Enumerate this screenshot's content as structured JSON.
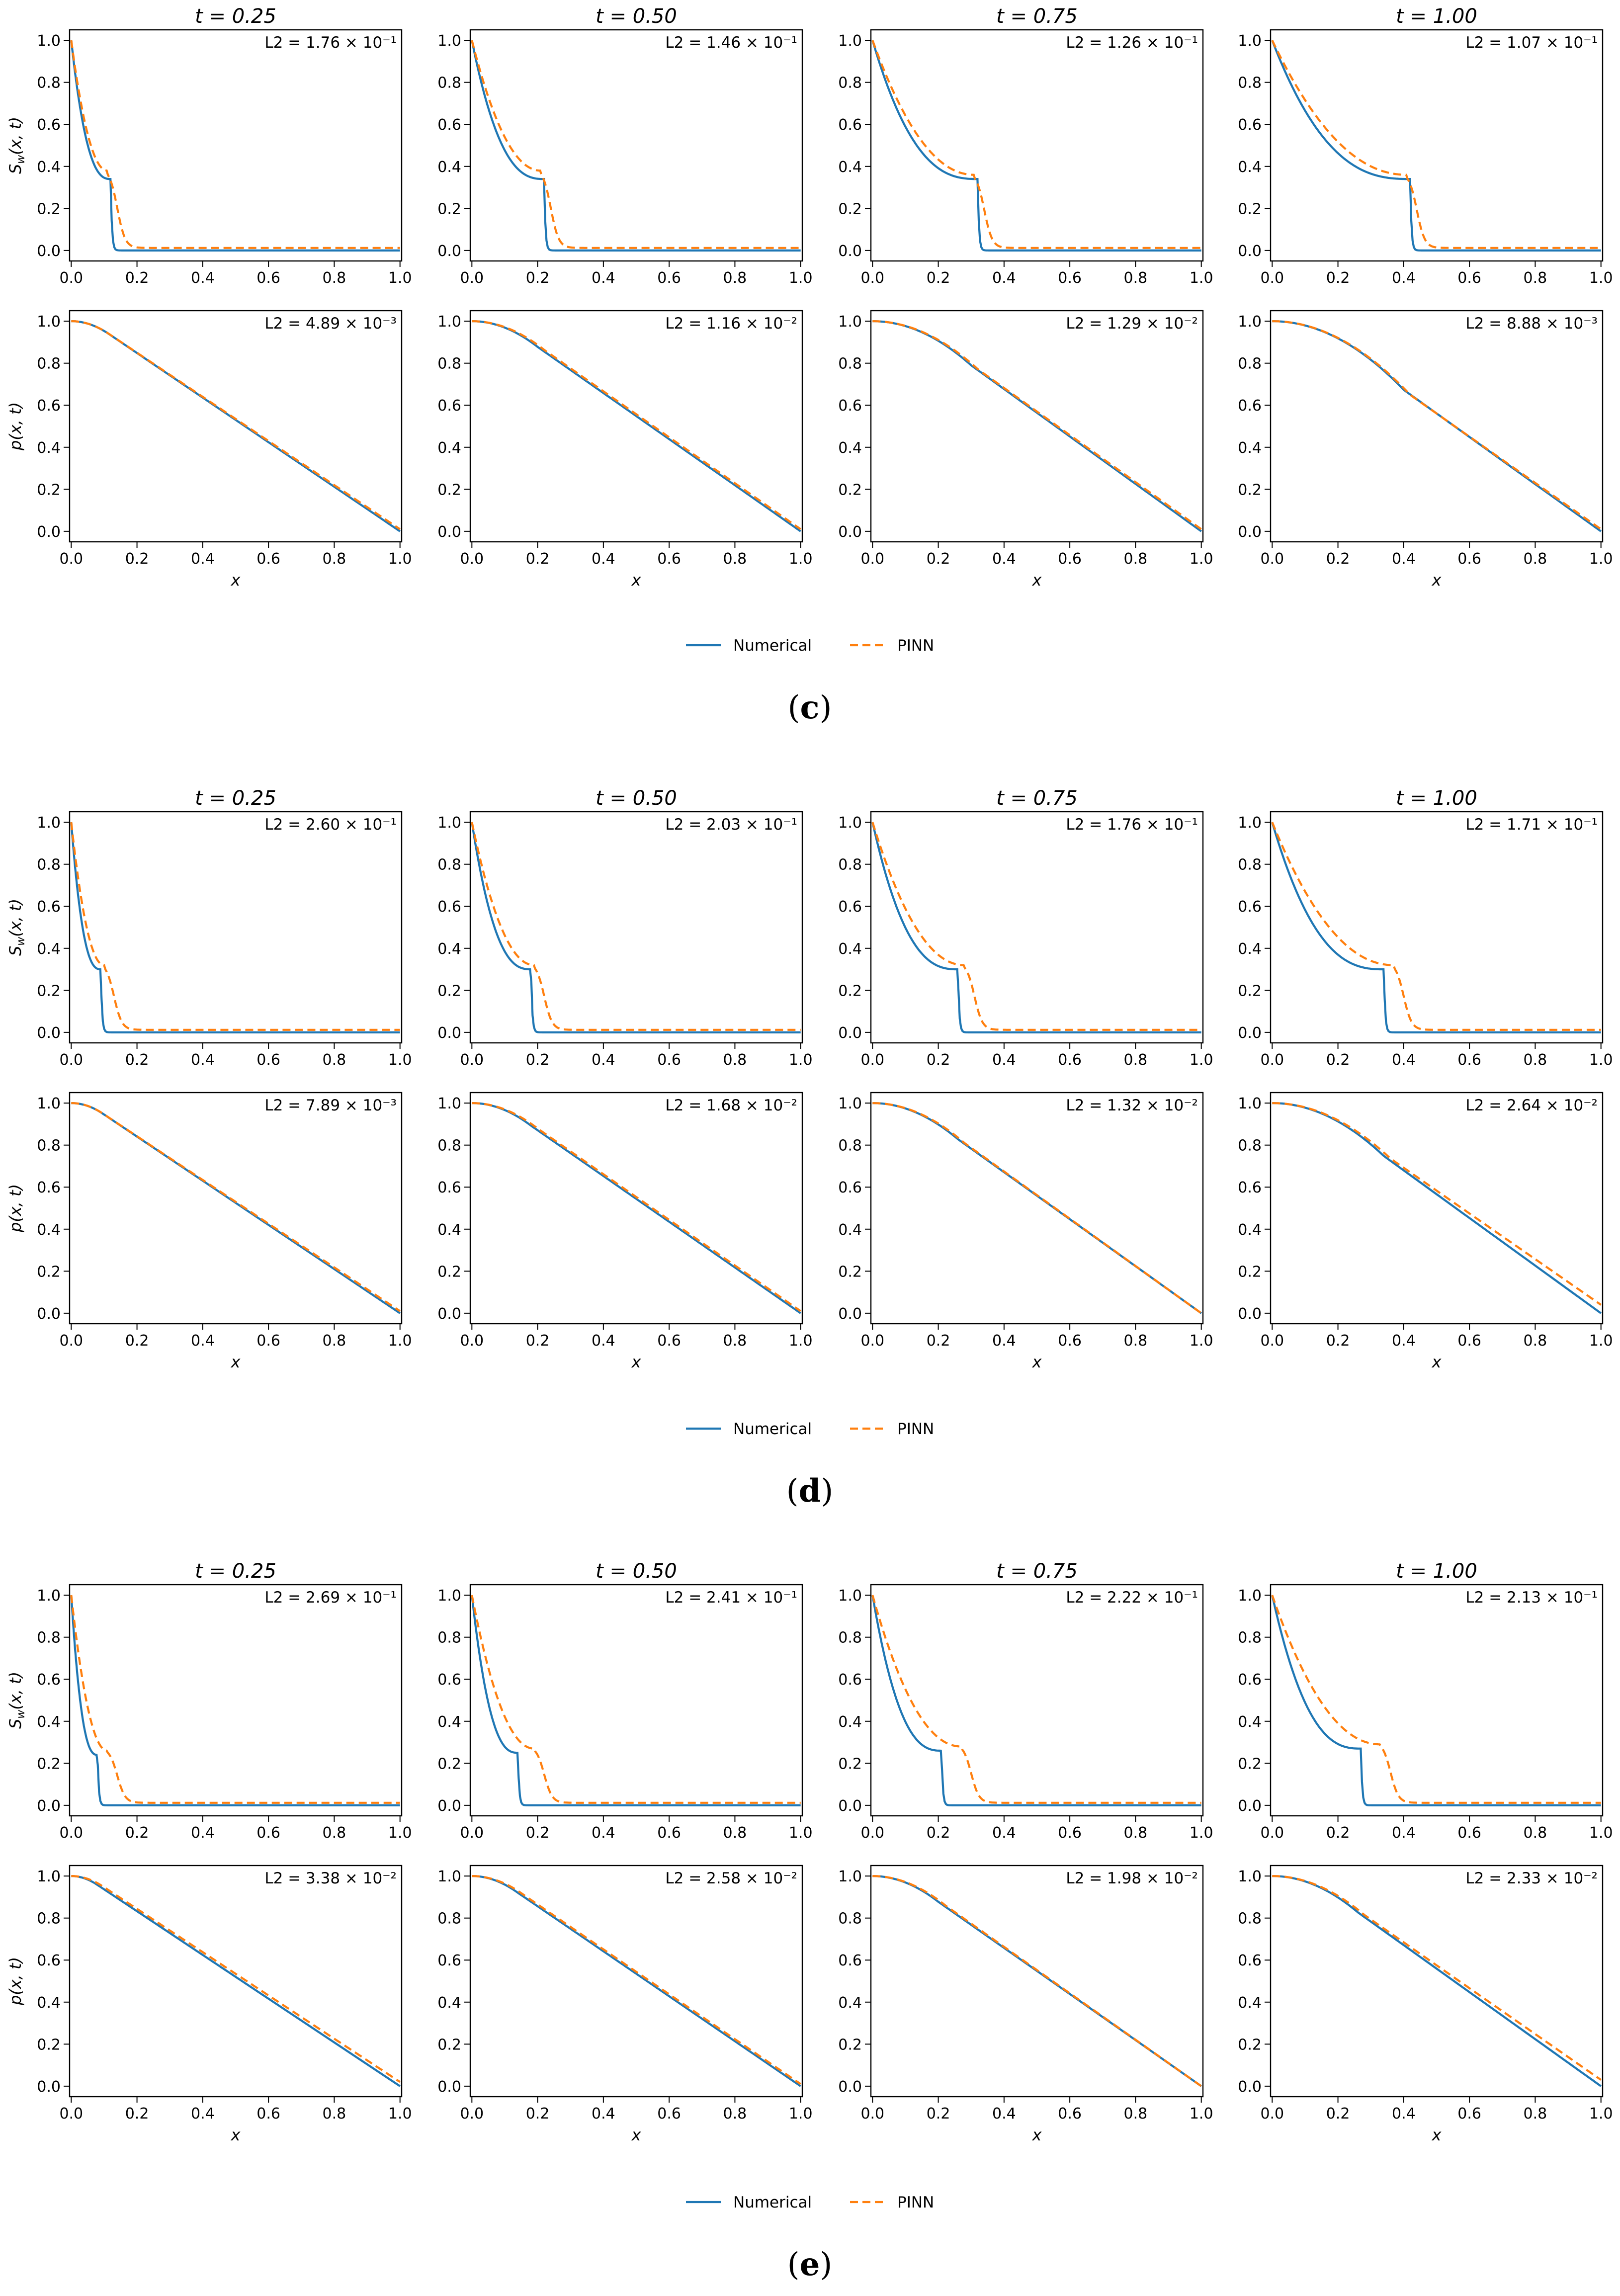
{
  "legend": {
    "numerical": "Numerical",
    "pinn": "PINN"
  },
  "colors": {
    "numerical": "#1f77b4",
    "pinn": "#ff7f0e",
    "axis": "#000000"
  },
  "axis_labels": {
    "x": "x",
    "sw_y": "S",
    "sw_sub": "w",
    "sw_args": "(x, t)",
    "p_y": "p(x, t)"
  },
  "l2_prefix": "L2 = ",
  "chart_data": [
    {
      "type": "line",
      "label": "(c)",
      "time_titles": [
        "t = 0.25",
        "t = 0.50",
        "t = 0.75",
        "t = 1.00"
      ],
      "xlim": [
        0,
        1
      ],
      "ylim": [
        0,
        1
      ],
      "x_ticks": [
        "0.0",
        "0.2",
        "0.4",
        "0.6",
        "0.8",
        "1.0"
      ],
      "y_ticks": [
        "0.0",
        "0.2",
        "0.4",
        "0.6",
        "0.8",
        "1.0"
      ],
      "sw_panels": [
        {
          "l2": "1.76 × 10⁻¹",
          "numerical": {
            "front": 0.12,
            "plateau": 0.34
          },
          "pinn": {
            "front": 0.14,
            "plateau": 0.38
          }
        },
        {
          "l2": "1.46 × 10⁻¹",
          "numerical": {
            "front": 0.22,
            "plateau": 0.34
          },
          "pinn": {
            "front": 0.24,
            "plateau": 0.38
          }
        },
        {
          "l2": "1.26 × 10⁻¹",
          "numerical": {
            "front": 0.32,
            "plateau": 0.34
          },
          "pinn": {
            "front": 0.34,
            "plateau": 0.36
          }
        },
        {
          "l2": "1.07 × 10⁻¹",
          "numerical": {
            "front": 0.42,
            "plateau": 0.34
          },
          "pinn": {
            "front": 0.44,
            "plateau": 0.36
          }
        }
      ],
      "p_panels": [
        {
          "l2": "4.89 × 10⁻³",
          "numerical": {
            "knee": 0.12,
            "end": 0.0
          },
          "pinn": {
            "knee": 0.12,
            "end": 0.01
          }
        },
        {
          "l2": "1.16 × 10⁻²",
          "numerical": {
            "knee": 0.2,
            "end": 0.0
          },
          "pinn": {
            "knee": 0.22,
            "end": 0.01
          }
        },
        {
          "l2": "1.29 × 10⁻²",
          "numerical": {
            "knee": 0.3,
            "end": 0.0
          },
          "pinn": {
            "knee": 0.32,
            "end": 0.01
          }
        },
        {
          "l2": "8.88 × 10⁻³",
          "numerical": {
            "knee": 0.4,
            "end": 0.0
          },
          "pinn": {
            "knee": 0.42,
            "end": 0.01
          }
        }
      ]
    },
    {
      "type": "line",
      "label": "(d)",
      "time_titles": [
        "t = 0.25",
        "t = 0.50",
        "t = 0.75",
        "t = 1.00"
      ],
      "xlim": [
        0,
        1
      ],
      "ylim": [
        0,
        1
      ],
      "x_ticks": [
        "0.0",
        "0.2",
        "0.4",
        "0.6",
        "0.8",
        "1.0"
      ],
      "y_ticks": [
        "0.0",
        "0.2",
        "0.4",
        "0.6",
        "0.8",
        "1.0"
      ],
      "sw_panels": [
        {
          "l2": "2.60 × 10⁻¹",
          "numerical": {
            "front": 0.09,
            "plateau": 0.3
          },
          "pinn": {
            "front": 0.13,
            "plateau": 0.32
          }
        },
        {
          "l2": "2.03 × 10⁻¹",
          "numerical": {
            "front": 0.18,
            "plateau": 0.3
          },
          "pinn": {
            "front": 0.22,
            "plateau": 0.32
          }
        },
        {
          "l2": "1.76 × 10⁻¹",
          "numerical": {
            "front": 0.26,
            "plateau": 0.3
          },
          "pinn": {
            "front": 0.31,
            "plateau": 0.32
          }
        },
        {
          "l2": "1.71 × 10⁻¹",
          "numerical": {
            "front": 0.34,
            "plateau": 0.3
          },
          "pinn": {
            "front": 0.4,
            "plateau": 0.32
          }
        }
      ],
      "p_panels": [
        {
          "l2": "7.89 × 10⁻³",
          "numerical": {
            "knee": 0.1,
            "end": 0.0
          },
          "pinn": {
            "knee": 0.1,
            "end": 0.01
          }
        },
        {
          "l2": "1.68 × 10⁻²",
          "numerical": {
            "knee": 0.18,
            "end": 0.0
          },
          "pinn": {
            "knee": 0.2,
            "end": 0.01
          }
        },
        {
          "l2": "1.32 × 10⁻²",
          "numerical": {
            "knee": 0.26,
            "end": 0.0
          },
          "pinn": {
            "knee": 0.28,
            "end": 0.0
          }
        },
        {
          "l2": "2.64 × 10⁻²",
          "numerical": {
            "knee": 0.34,
            "end": 0.0
          },
          "pinn": {
            "knee": 0.36,
            "end": 0.04
          }
        }
      ]
    },
    {
      "type": "line",
      "label": "(e)",
      "time_titles": [
        "t = 0.25",
        "t = 0.50",
        "t = 0.75",
        "t = 1.00"
      ],
      "xlim": [
        0,
        1
      ],
      "ylim": [
        0,
        1
      ],
      "x_ticks": [
        "0.0",
        "0.2",
        "0.4",
        "0.6",
        "0.8",
        "1.0"
      ],
      "y_ticks": [
        "0.0",
        "0.2",
        "0.4",
        "0.6",
        "0.8",
        "1.0"
      ],
      "sw_panels": [
        {
          "l2": "2.69 × 10⁻¹",
          "numerical": {
            "front": 0.08,
            "plateau": 0.24
          },
          "pinn": {
            "front": 0.14,
            "plateau": 0.26
          }
        },
        {
          "l2": "2.41 × 10⁻¹",
          "numerical": {
            "front": 0.14,
            "plateau": 0.25
          },
          "pinn": {
            "front": 0.22,
            "plateau": 0.27
          }
        },
        {
          "l2": "2.22 × 10⁻¹",
          "numerical": {
            "front": 0.21,
            "plateau": 0.26
          },
          "pinn": {
            "front": 0.3,
            "plateau": 0.28
          }
        },
        {
          "l2": "2.13 × 10⁻¹",
          "numerical": {
            "front": 0.27,
            "plateau": 0.27
          },
          "pinn": {
            "front": 0.36,
            "plateau": 0.29
          }
        }
      ],
      "p_panels": [
        {
          "l2": "3.38 × 10⁻²",
          "numerical": {
            "knee": 0.08,
            "end": 0.0
          },
          "pinn": {
            "knee": 0.1,
            "end": 0.02
          }
        },
        {
          "l2": "2.58 × 10⁻²",
          "numerical": {
            "knee": 0.14,
            "end": 0.0
          },
          "pinn": {
            "knee": 0.16,
            "end": 0.01
          }
        },
        {
          "l2": "1.98 × 10⁻²",
          "numerical": {
            "knee": 0.2,
            "end": 0.0
          },
          "pinn": {
            "knee": 0.22,
            "end": 0.0
          }
        },
        {
          "l2": "2.33 × 10⁻²",
          "numerical": {
            "knee": 0.26,
            "end": 0.0
          },
          "pinn": {
            "knee": 0.28,
            "end": 0.03
          }
        }
      ]
    }
  ]
}
